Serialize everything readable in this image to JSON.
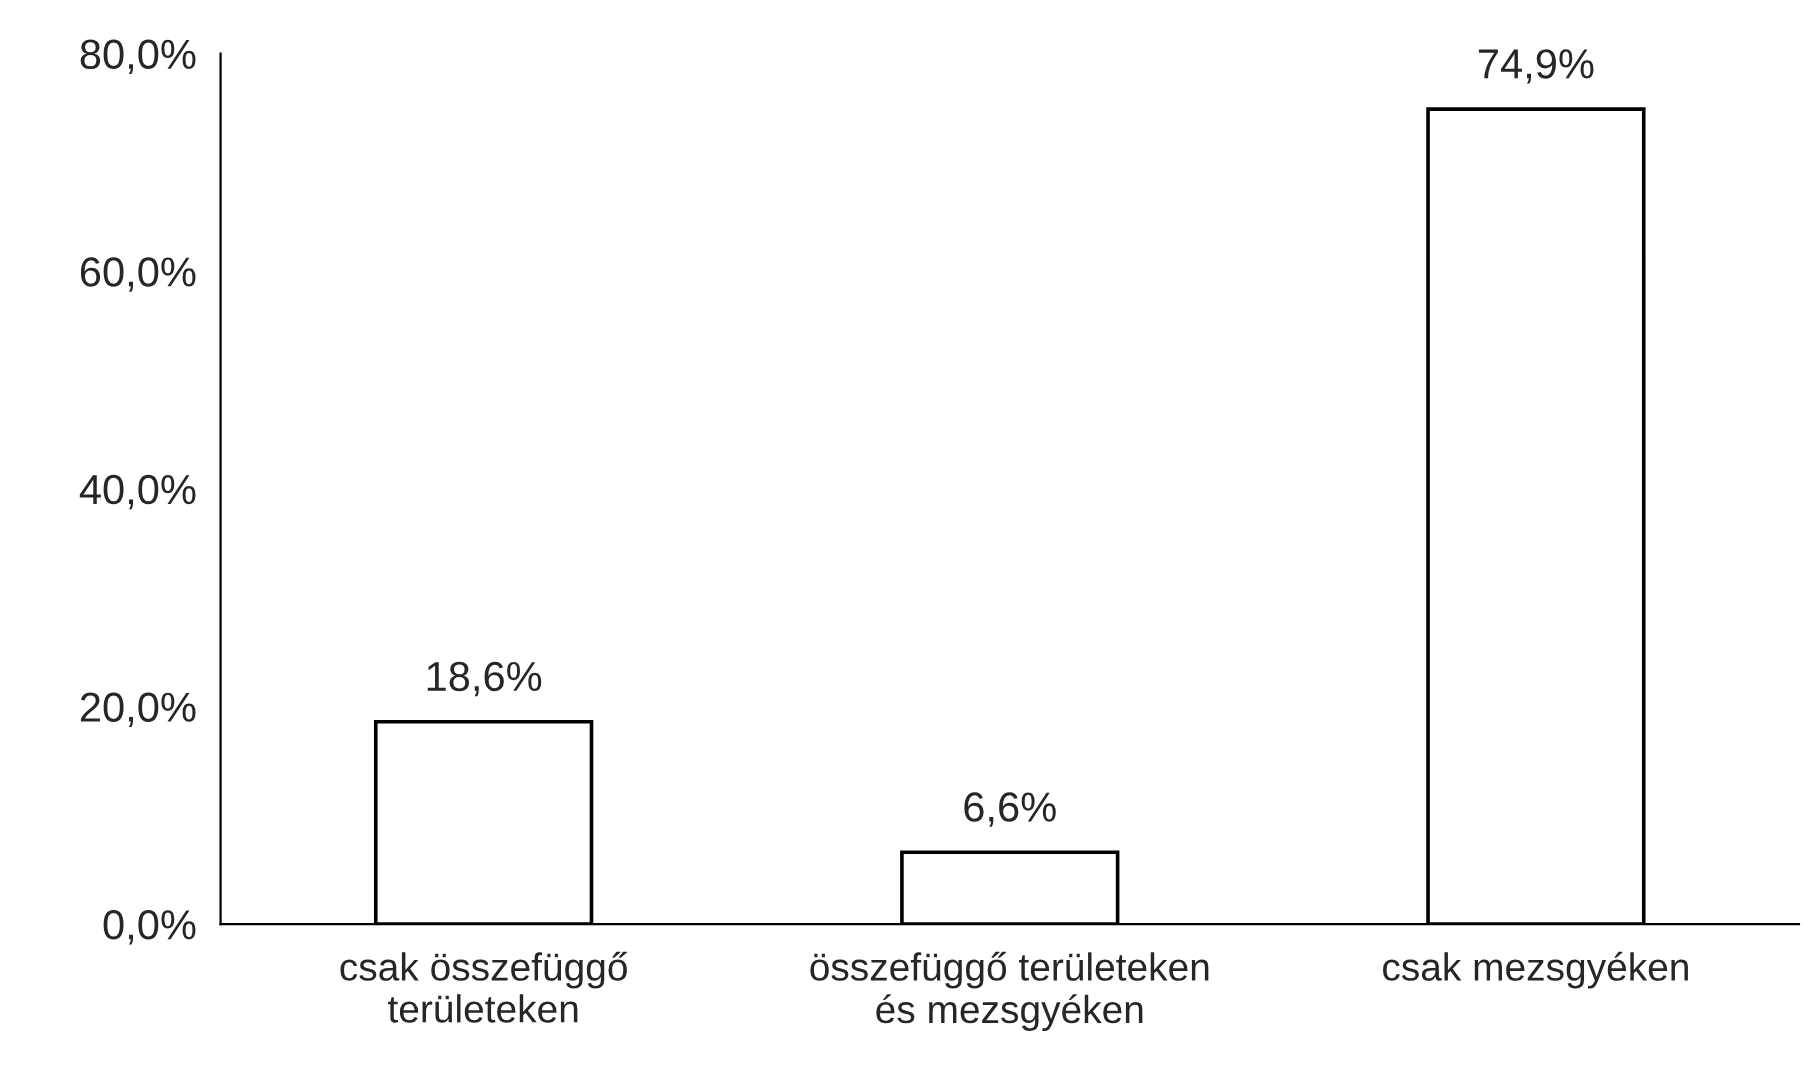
{
  "chart_data": {
    "type": "bar",
    "categories": [
      "csak összefüggő területeken",
      "összefüggő területeken és mezsgyéken",
      "csak mezsgyéken"
    ],
    "values": [
      18.6,
      6.6,
      74.9
    ],
    "value_labels": [
      "18,6%",
      "6,6%",
      "74,9%"
    ],
    "color": "#ffffff",
    "ylim": [
      0,
      80
    ],
    "yticks": [
      {
        "value": 0,
        "label": "0,0%"
      },
      {
        "value": 20,
        "label": "20,0%"
      },
      {
        "value": 40,
        "label": "40,0%"
      },
      {
        "value": 60,
        "label": "60,0%"
      },
      {
        "value": 80,
        "label": "80,0%"
      }
    ],
    "grid": false,
    "legend": false
  }
}
